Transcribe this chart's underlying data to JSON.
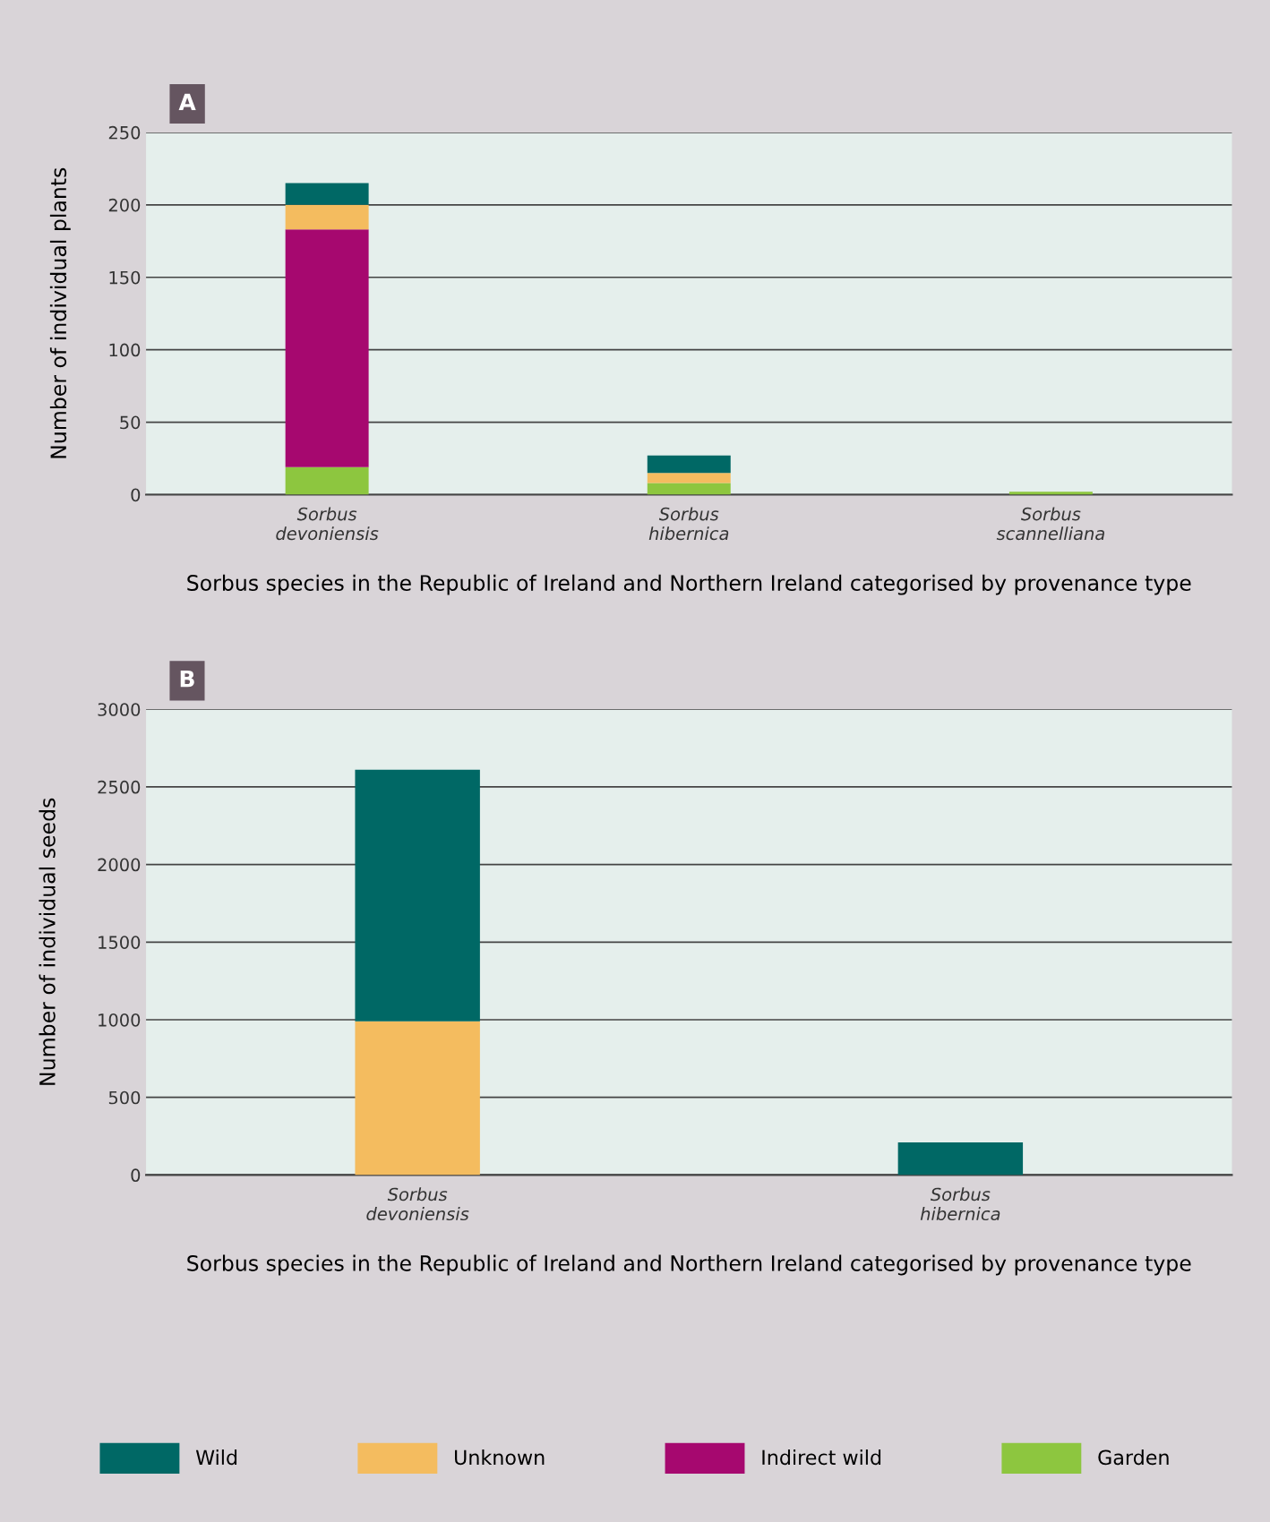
{
  "chart_data": [
    {
      "type": "bar",
      "title": "A",
      "ylabel": "Number of individual plants",
      "xlabel": "Sorbus species in the Republic of Ireland and Northern Ireland categorised by provenance type",
      "categories": [
        "Sorbus devoniensis",
        "Sorbus hibernica",
        "Sorbus scannelliana"
      ],
      "stacked": true,
      "ylim": [
        0,
        250
      ],
      "yticks": [
        0,
        50,
        100,
        150,
        200,
        250
      ],
      "grid": "y",
      "legend": "bottom",
      "series": [
        {
          "name": "Garden",
          "color": "#8dc63f",
          "values": [
            19,
            8,
            2
          ]
        },
        {
          "name": "Indirect wild",
          "color": "#a6086f",
          "values": [
            164,
            0,
            0
          ]
        },
        {
          "name": "Unknown",
          "color": "#f4bc5f",
          "values": [
            17,
            7,
            0
          ]
        },
        {
          "name": "Wild",
          "color": "#006865",
          "values": [
            15,
            12,
            0
          ]
        }
      ]
    },
    {
      "type": "bar",
      "title": "B",
      "ylabel": "Number of individual seeds",
      "xlabel": "Sorbus species in the Republic of Ireland and Northern Ireland categorised by provenance type",
      "categories": [
        "Sorbus devoniensis",
        "Sorbus hibernica"
      ],
      "stacked": true,
      "ylim": [
        0,
        3000
      ],
      "yticks": [
        0,
        500,
        1000,
        1500,
        2000,
        2500,
        3000
      ],
      "grid": "y",
      "legend": "bottom",
      "series": [
        {
          "name": "Unknown",
          "color": "#f4bc5f",
          "values": [
            990,
            0
          ]
        },
        {
          "name": "Wild",
          "color": "#006865",
          "values": [
            1620,
            210
          ]
        }
      ]
    }
  ]
}
